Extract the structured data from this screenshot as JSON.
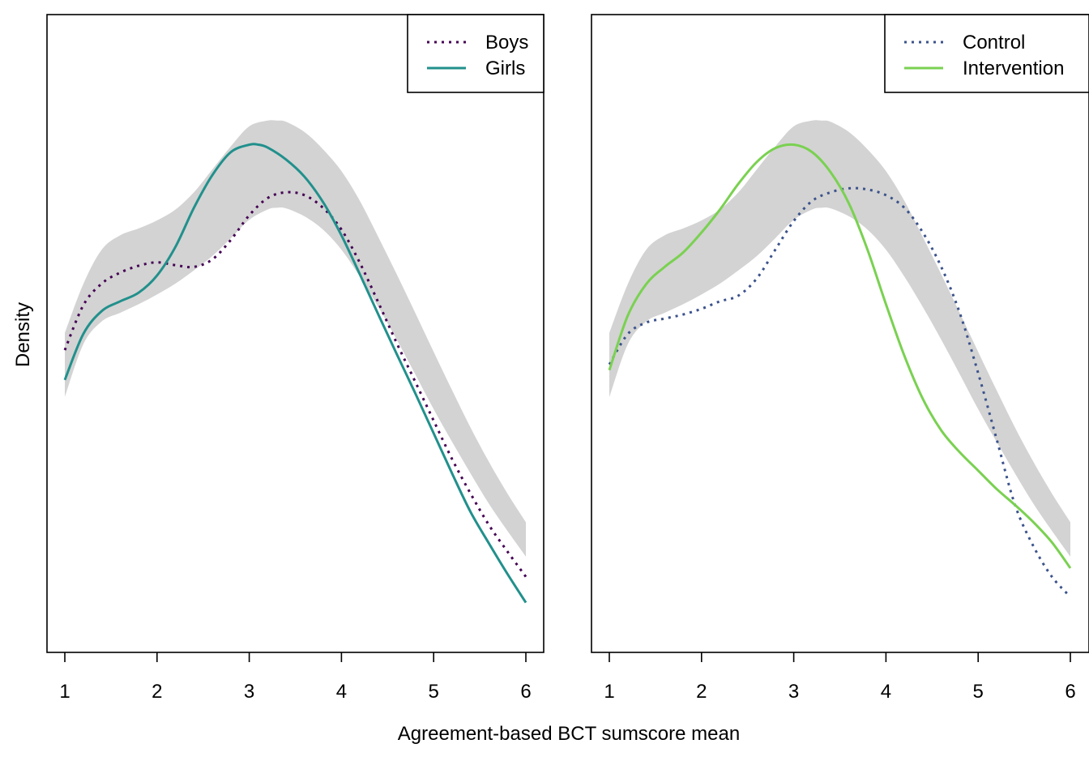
{
  "figure": {
    "ylabel": "Density",
    "xlabel": "Agreement-based BCT sumscore mean"
  },
  "chart_data": [
    {
      "type": "line",
      "title": "",
      "xlabel": "Agreement-based BCT sumscore mean",
      "ylabel": "Density",
      "xlim": [
        1,
        6
      ],
      "ylim": [
        0,
        1
      ],
      "x_ticks": [
        1,
        2,
        3,
        4,
        5,
        6
      ],
      "grid": false,
      "legend_position": "top-right",
      "band": {
        "x": [
          1.0,
          1.2,
          1.4,
          1.6,
          1.8,
          2.0,
          2.2,
          2.4,
          2.6,
          2.8,
          3.0,
          3.2,
          3.3,
          3.4,
          3.6,
          3.8,
          4.0,
          4.2,
          4.4,
          4.6,
          4.8,
          5.0,
          5.2,
          5.4,
          5.6,
          5.8,
          6.0
        ],
        "lower": [
          0.418,
          0.51,
          0.55,
          0.565,
          0.58,
          0.597,
          0.616,
          0.639,
          0.664,
          0.695,
          0.727,
          0.745,
          0.748,
          0.747,
          0.733,
          0.71,
          0.675,
          0.628,
          0.575,
          0.518,
          0.458,
          0.397,
          0.34,
          0.285,
          0.232,
          0.185,
          0.14
        ],
        "upper": [
          0.53,
          0.615,
          0.675,
          0.7,
          0.712,
          0.726,
          0.745,
          0.775,
          0.815,
          0.855,
          0.89,
          0.9,
          0.9,
          0.898,
          0.88,
          0.85,
          0.812,
          0.76,
          0.697,
          0.632,
          0.565,
          0.497,
          0.43,
          0.365,
          0.305,
          0.25,
          0.2
        ]
      },
      "series": [
        {
          "name": "Boys",
          "color": "#440154",
          "style": "dotted",
          "x": [
            1.0,
            1.2,
            1.4,
            1.6,
            1.8,
            2.0,
            2.2,
            2.4,
            2.6,
            2.8,
            3.0,
            3.2,
            3.4,
            3.6,
            3.8,
            4.0,
            4.2,
            4.4,
            4.6,
            4.8,
            5.0,
            5.2,
            5.4,
            5.6,
            5.8,
            6.0
          ],
          "y": [
            0.5,
            0.578,
            0.616,
            0.635,
            0.647,
            0.653,
            0.648,
            0.645,
            0.658,
            0.692,
            0.735,
            0.765,
            0.775,
            0.77,
            0.748,
            0.71,
            0.652,
            0.583,
            0.512,
            0.445,
            0.377,
            0.31,
            0.25,
            0.195,
            0.149,
            0.105
          ]
        },
        {
          "name": "Girls",
          "color": "#21908C",
          "style": "solid",
          "x": [
            1.0,
            1.2,
            1.4,
            1.6,
            1.8,
            2.0,
            2.2,
            2.4,
            2.6,
            2.8,
            3.0,
            3.1,
            3.2,
            3.4,
            3.6,
            3.8,
            4.0,
            4.2,
            4.4,
            4.6,
            4.8,
            5.0,
            5.2,
            5.4,
            5.6,
            5.8,
            6.0
          ],
          "y": [
            0.448,
            0.528,
            0.568,
            0.585,
            0.6,
            0.63,
            0.68,
            0.748,
            0.805,
            0.845,
            0.858,
            0.858,
            0.853,
            0.832,
            0.802,
            0.758,
            0.7,
            0.632,
            0.562,
            0.493,
            0.425,
            0.355,
            0.285,
            0.218,
            0.163,
            0.11,
            0.06
          ]
        }
      ]
    },
    {
      "type": "line",
      "title": "",
      "xlabel": "Agreement-based BCT sumscore mean",
      "ylabel": "",
      "xlim": [
        1,
        6
      ],
      "ylim": [
        0,
        1
      ],
      "x_ticks": [
        1,
        2,
        3,
        4,
        5,
        6
      ],
      "grid": false,
      "legend_position": "top-right",
      "band": {
        "x": [
          1.0,
          1.2,
          1.4,
          1.6,
          1.8,
          2.0,
          2.2,
          2.4,
          2.6,
          2.8,
          3.0,
          3.2,
          3.3,
          3.4,
          3.6,
          3.8,
          4.0,
          4.2,
          4.4,
          4.6,
          4.8,
          5.0,
          5.2,
          5.4,
          5.6,
          5.8,
          6.0
        ],
        "lower": [
          0.418,
          0.51,
          0.55,
          0.565,
          0.58,
          0.597,
          0.616,
          0.639,
          0.664,
          0.695,
          0.727,
          0.745,
          0.748,
          0.747,
          0.733,
          0.71,
          0.675,
          0.628,
          0.575,
          0.518,
          0.458,
          0.397,
          0.34,
          0.285,
          0.232,
          0.185,
          0.14
        ],
        "upper": [
          0.53,
          0.615,
          0.675,
          0.7,
          0.712,
          0.726,
          0.745,
          0.775,
          0.815,
          0.855,
          0.89,
          0.9,
          0.9,
          0.898,
          0.88,
          0.85,
          0.812,
          0.76,
          0.697,
          0.632,
          0.565,
          0.497,
          0.43,
          0.365,
          0.305,
          0.25,
          0.2
        ]
      },
      "series": [
        {
          "name": "Control",
          "color": "#3B528B",
          "style": "dotted",
          "x": [
            1.0,
            1.2,
            1.4,
            1.6,
            1.8,
            2.0,
            2.2,
            2.4,
            2.6,
            2.8,
            3.0,
            3.2,
            3.4,
            3.6,
            3.8,
            4.0,
            4.2,
            4.4,
            4.6,
            4.8,
            5.0,
            5.2,
            5.4,
            5.6,
            5.8,
            6.0
          ],
          "y": [
            0.475,
            0.528,
            0.548,
            0.555,
            0.562,
            0.572,
            0.585,
            0.595,
            0.625,
            0.675,
            0.725,
            0.76,
            0.775,
            0.782,
            0.78,
            0.77,
            0.748,
            0.705,
            0.645,
            0.565,
            0.46,
            0.345,
            0.23,
            0.158,
            0.105,
            0.07
          ]
        },
        {
          "name": "Intervention",
          "color": "#7AD151",
          "style": "solid",
          "x": [
            1.0,
            1.2,
            1.4,
            1.6,
            1.8,
            2.0,
            2.2,
            2.4,
            2.6,
            2.8,
            3.0,
            3.2,
            3.4,
            3.6,
            3.8,
            4.0,
            4.2,
            4.4,
            4.6,
            4.8,
            5.0,
            5.2,
            5.4,
            5.6,
            5.8,
            6.0
          ],
          "y": [
            0.465,
            0.56,
            0.615,
            0.645,
            0.67,
            0.705,
            0.745,
            0.79,
            0.828,
            0.852,
            0.858,
            0.845,
            0.81,
            0.755,
            0.675,
            0.58,
            0.49,
            0.415,
            0.36,
            0.322,
            0.29,
            0.258,
            0.23,
            0.2,
            0.165,
            0.12
          ]
        }
      ]
    }
  ]
}
